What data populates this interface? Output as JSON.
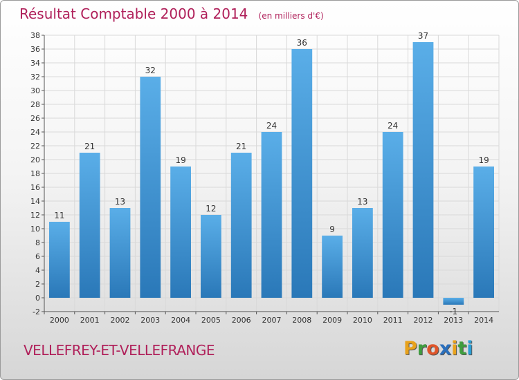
{
  "header": {
    "title": "Résultat Comptable 2000 à 2014",
    "subtitle": "(en milliers d'€)"
  },
  "footer": {
    "commune": "VELLEFREY-ET-VELLEFRANGE",
    "logo_letters": [
      "P",
      "r",
      "o",
      "x",
      "i",
      "t",
      "i"
    ],
    "logo_colors": [
      "#e8a21c",
      "#3f9d3f",
      "#e0552a",
      "#2a6fbd",
      "#e8a21c",
      "#3f9d3f",
      "#2a9fd6"
    ]
  },
  "chart_data": {
    "type": "bar",
    "title": "Résultat Comptable 2000 à 2014",
    "subtitle": "(en milliers d'€)",
    "categories": [
      "2000",
      "2001",
      "2002",
      "2003",
      "2004",
      "2005",
      "2006",
      "2007",
      "2008",
      "2009",
      "2010",
      "2011",
      "2012",
      "2013",
      "2014"
    ],
    "values": [
      11,
      21,
      13,
      32,
      19,
      12,
      21,
      24,
      36,
      9,
      13,
      24,
      37,
      -1,
      19
    ],
    "value_labels": [
      "11",
      "21",
      "13",
      "32",
      "19",
      "12",
      "21",
      "24",
      "36",
      "9",
      "13",
      "24",
      "37",
      "-1",
      "19"
    ],
    "ylim": [
      -2,
      38
    ],
    "yticks": [
      -2,
      0,
      2,
      4,
      6,
      8,
      10,
      12,
      14,
      16,
      18,
      20,
      22,
      24,
      26,
      28,
      30,
      32,
      34,
      36,
      38
    ],
    "xlabel": "",
    "ylabel": "",
    "grid": true,
    "colors": {
      "bar_light": "#5aaee8",
      "bar_dark": "#2a78b8",
      "grid": "#d9d9d9",
      "axis": "#555555"
    }
  }
}
